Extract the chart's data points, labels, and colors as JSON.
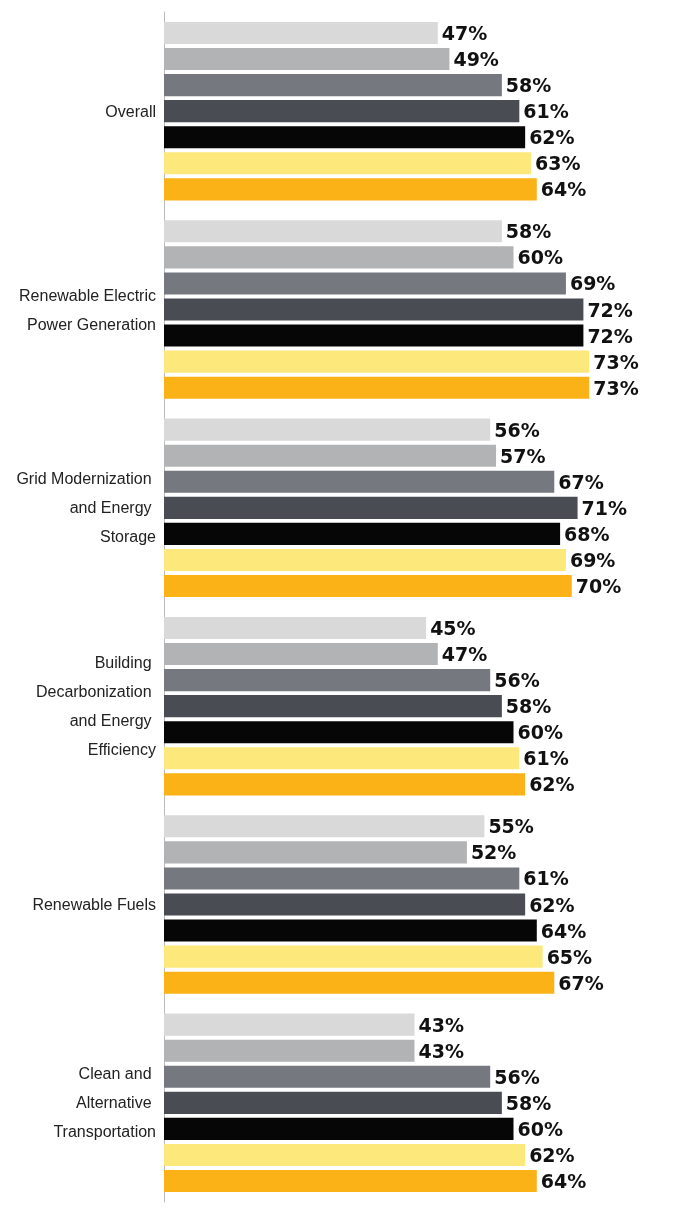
{
  "chart_data": {
    "type": "bar",
    "orientation": "horizontal",
    "categories": [
      "Overall",
      "Renewable Electric Power Generation",
      "Grid Modernization and Energy Storage",
      "Building Decarbonization and Energy Efficiency",
      "Renewable Fuels",
      "Clean and Alternative Transportation"
    ],
    "series": [
      {
        "color": "#d9d9d9",
        "values": [
          47,
          58,
          56,
          45,
          55,
          43
        ],
        "value_labels": [
          "47%",
          "58%",
          "56%",
          "45%",
          "55%",
          "43%"
        ]
      },
      {
        "color": "#b1b3b4",
        "values": [
          49,
          60,
          57,
          47,
          52,
          43
        ],
        "value_labels": [
          "49%",
          "60%",
          "57%",
          "47%",
          "52%",
          "43%"
        ]
      },
      {
        "color": "#76787f",
        "values": [
          58,
          69,
          67,
          56,
          61,
          56
        ],
        "value_labels": [
          "58%",
          "69%",
          "67%",
          "56%",
          "61%",
          "56%"
        ]
      },
      {
        "color": "#4a4c53",
        "values": [
          61,
          72,
          71,
          58,
          62,
          58
        ],
        "value_labels": [
          "61%",
          "72%",
          "71%",
          "58%",
          "62%",
          "58%"
        ]
      },
      {
        "color": "#060606",
        "values": [
          62,
          72,
          68,
          60,
          64,
          60
        ],
        "value_labels": [
          "62%",
          "72%",
          "68%",
          "60%",
          "64%",
          "60%"
        ]
      },
      {
        "color": "#fde97b",
        "values": [
          63,
          73,
          69,
          61,
          65,
          62
        ],
        "value_labels": [
          "63%",
          "73%",
          "69%",
          "61%",
          "65%",
          "62%"
        ]
      },
      {
        "color": "#fbb216",
        "values": [
          64,
          73,
          70,
          62,
          67,
          64
        ],
        "value_labels": [
          "64%",
          "73%",
          "70%",
          "62%",
          "67%",
          "64%"
        ]
      }
    ],
    "stacked": false
  }
}
